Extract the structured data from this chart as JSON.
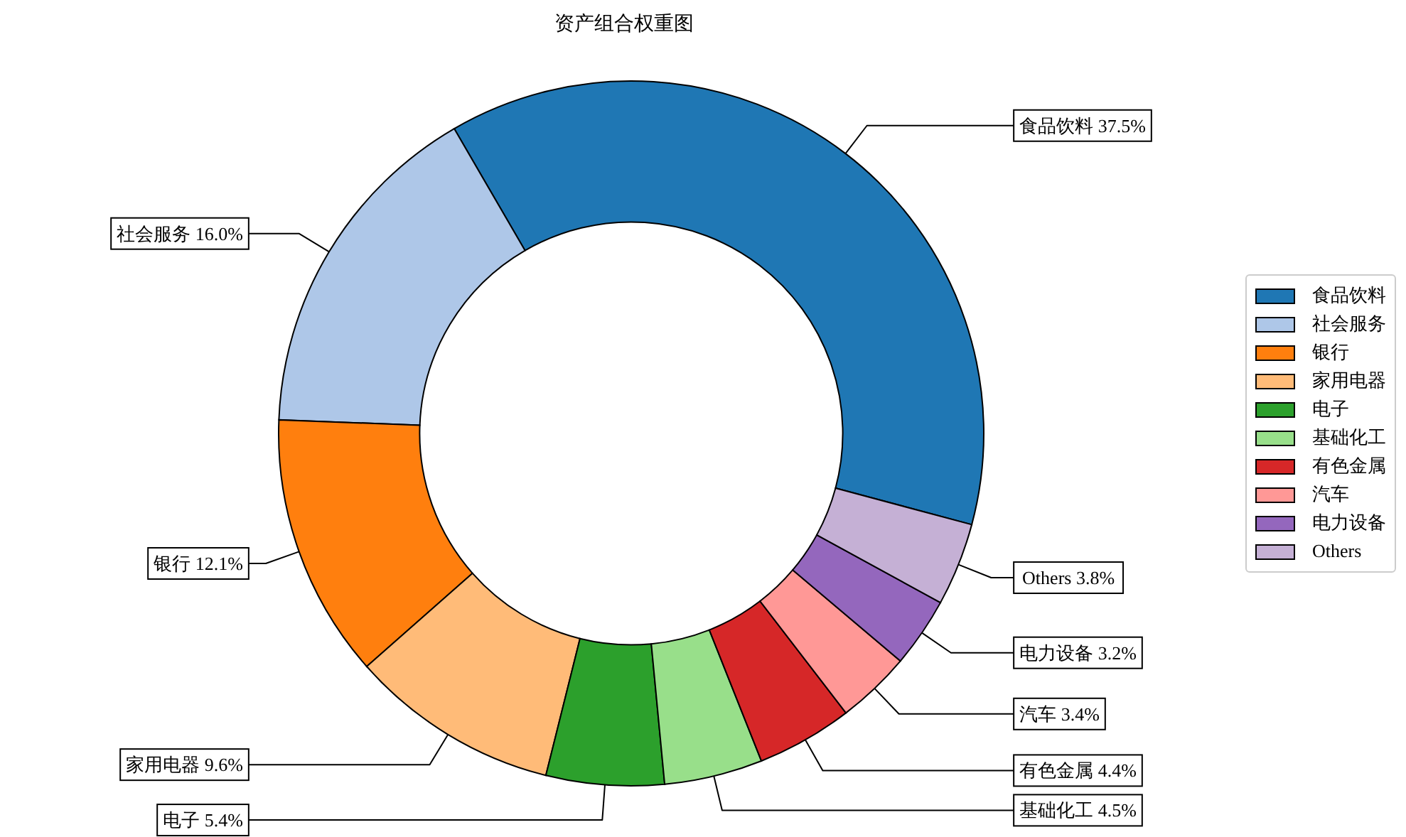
{
  "chart_data": {
    "type": "donut",
    "title": "资产组合权重图",
    "categories": [
      "食品饮料",
      "社会服务",
      "银行",
      "家用电器",
      "电子",
      "基础化工",
      "有色金属",
      "汽车",
      "电力设备",
      "Others"
    ],
    "values": [
      37.5,
      16.0,
      12.1,
      9.6,
      5.4,
      4.5,
      4.4,
      3.4,
      3.2,
      3.8
    ],
    "colors": [
      "#1f77b4",
      "#aec7e8",
      "#ff7f0e",
      "#ffbb78",
      "#2ca02c",
      "#98df8a",
      "#d62728",
      "#ff9896",
      "#9467bd",
      "#c5b0d5"
    ],
    "value_labels": [
      "食品饮料 37.5%",
      "社会服务 16.0%",
      "银行 12.1%",
      "家用电器 9.6%",
      "电子 5.4%",
      "基础化工 4.5%",
      "有色金属 4.4%",
      "汽车 3.4%",
      "电力设备 3.2%",
      "Others 3.8%"
    ],
    "legend": "right"
  }
}
